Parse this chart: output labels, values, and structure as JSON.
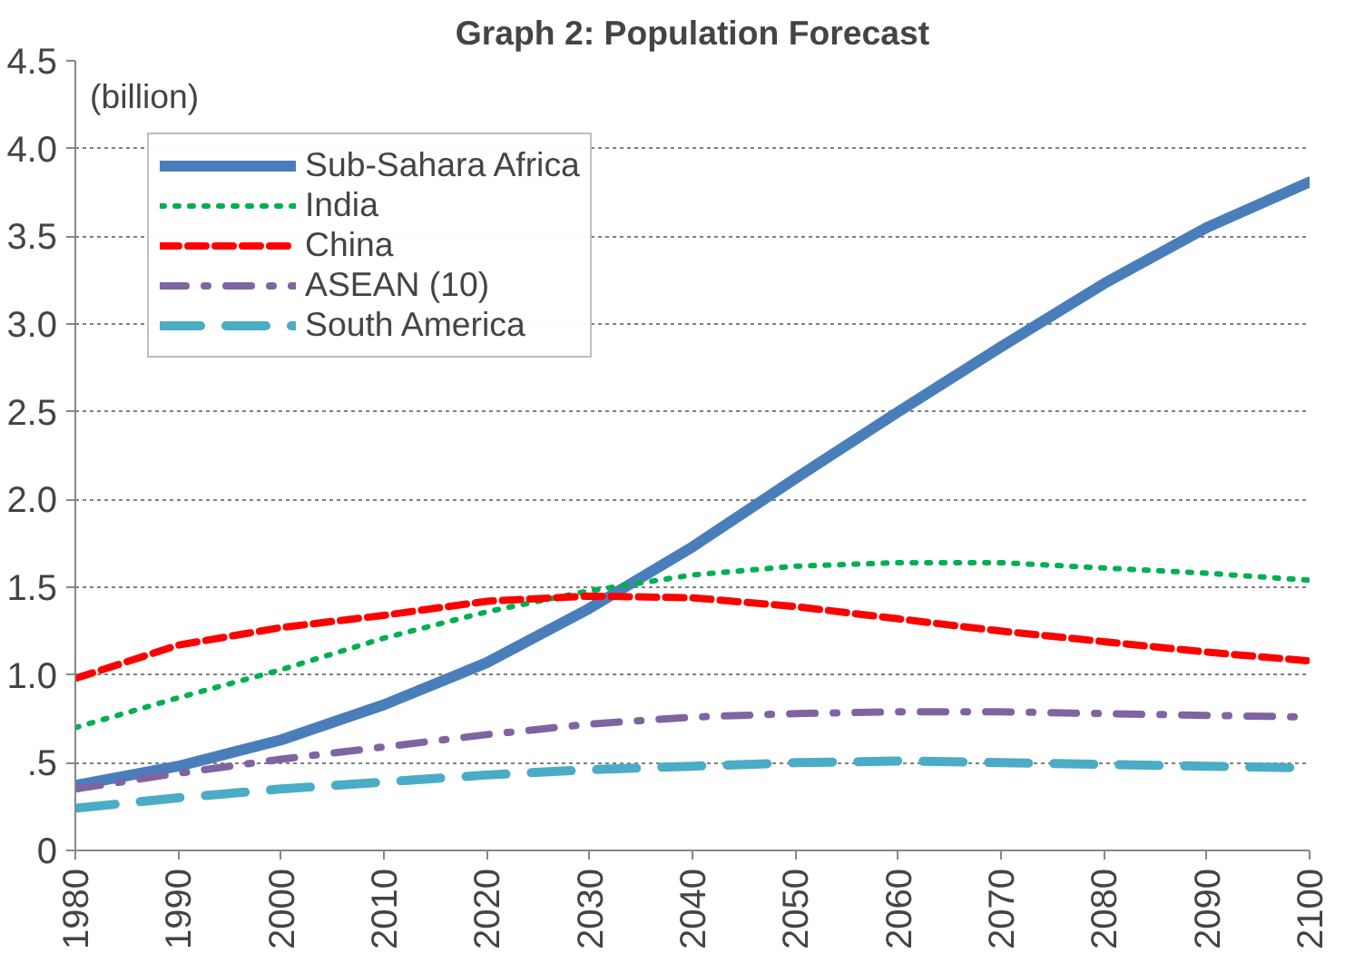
{
  "chart_data": {
    "type": "line",
    "title": "Graph 2: Population Forecast",
    "ylabel": "(billion)",
    "x": [
      1980,
      1990,
      2000,
      2010,
      2020,
      2030,
      2040,
      2050,
      2060,
      2070,
      2080,
      2090,
      2100
    ],
    "xlim": [
      1980,
      2100
    ],
    "xticks": [
      1980,
      1990,
      2000,
      2010,
      2020,
      2030,
      2040,
      2050,
      2060,
      2070,
      2080,
      2090,
      2100
    ],
    "ylim": [
      0,
      4.5
    ],
    "yticks": [
      0,
      {
        "value": 0.5,
        "label": ".5"
      },
      {
        "value": 1.0,
        "label": "1.0"
      },
      {
        "value": 1.5,
        "label": "1.5"
      },
      {
        "value": 2.0,
        "label": "2.0"
      },
      {
        "value": 2.5,
        "label": "2.5"
      },
      {
        "value": 3.0,
        "label": "3.0"
      },
      {
        "value": 3.5,
        "label": "3.5"
      },
      {
        "value": 4.0,
        "label": "4.0"
      },
      {
        "value": 4.5,
        "label": "4.5"
      }
    ],
    "grid": "y",
    "legend": "top left",
    "marker": "none",
    "series": [
      {
        "name": "Sub-Sahara Africa",
        "color": "#4a7ebb",
        "line_style": "solid",
        "values": [
          0.37,
          0.48,
          0.63,
          0.83,
          1.07,
          1.38,
          1.73,
          2.12,
          2.5,
          2.87,
          3.23,
          3.55,
          3.81
        ]
      },
      {
        "name": "India",
        "color": "#00b050",
        "line_style": "dotted",
        "values": [
          0.7,
          0.87,
          1.03,
          1.21,
          1.36,
          1.48,
          1.57,
          1.62,
          1.64,
          1.64,
          1.61,
          1.58,
          1.54
        ]
      },
      {
        "name": "China",
        "color": "#ff0000",
        "line_style": "dashed",
        "values": [
          0.98,
          1.17,
          1.27,
          1.34,
          1.42,
          1.45,
          1.44,
          1.39,
          1.32,
          1.25,
          1.19,
          1.13,
          1.08
        ]
      },
      {
        "name": "ASEAN (10)",
        "color": "#8064a2",
        "line_style": "dashdot",
        "values": [
          0.35,
          0.44,
          0.52,
          0.59,
          0.66,
          0.72,
          0.76,
          0.78,
          0.79,
          0.79,
          0.78,
          0.77,
          0.76
        ]
      },
      {
        "name": "South America",
        "color": "#4bacc6",
        "line_style": "longdash",
        "values": [
          0.24,
          0.3,
          0.35,
          0.39,
          0.43,
          0.46,
          0.48,
          0.5,
          0.51,
          0.5,
          0.49,
          0.48,
          0.47
        ]
      }
    ]
  }
}
